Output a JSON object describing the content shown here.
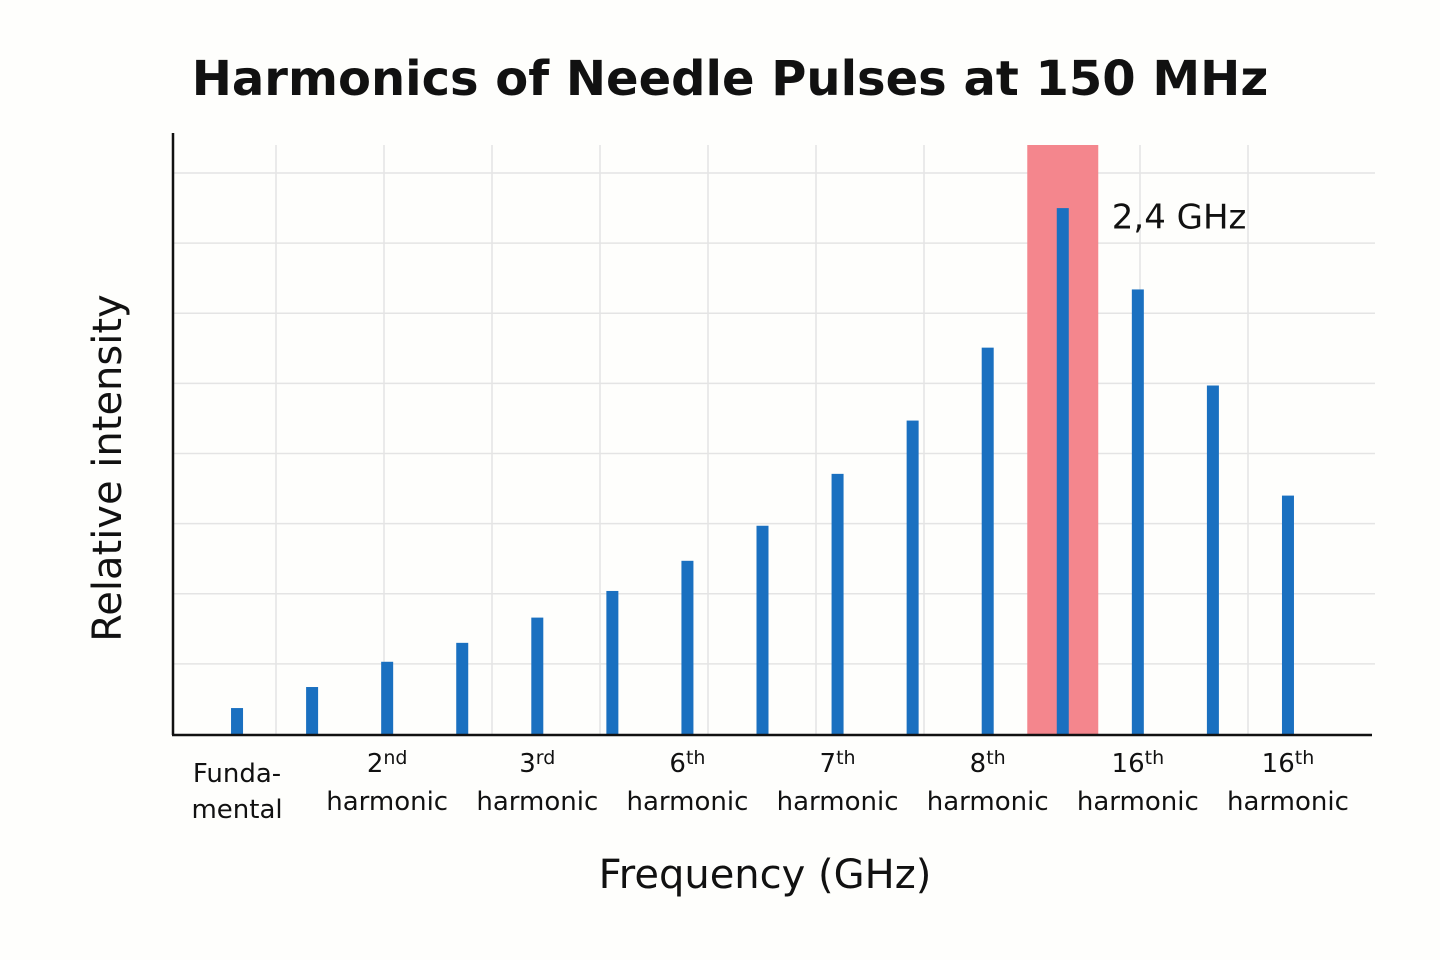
{
  "chart_data": {
    "type": "bar",
    "title": "Harmonics of Needle Pulses at 150 MHz",
    "x_label": "Frequency (GHz)",
    "y_label": "Relative intensity",
    "categories": [
      "Funda-\nmental",
      null,
      "2nd harmonic",
      null,
      "3rd harmonic",
      null,
      "6th harmonic",
      null,
      "7th harmonic",
      null,
      "8th harmonic",
      null,
      "16th harmonic",
      null,
      "16th harmonic"
    ],
    "values": [
      0.37,
      0.67,
      1.03,
      1.3,
      1.66,
      2.04,
      2.47,
      2.97,
      3.71,
      4.47,
      5.51,
      7.5,
      6.34,
      4.97,
      3.4
    ],
    "color": "#1a70c0",
    "ylim": [
      0,
      8.4
    ],
    "yticks": [
      1,
      2,
      3,
      4,
      5,
      6,
      7,
      8
    ],
    "grid": true,
    "highlight_index": 11,
    "highlight_color": "#f4868d",
    "annotation": "2,4 GHz"
  }
}
